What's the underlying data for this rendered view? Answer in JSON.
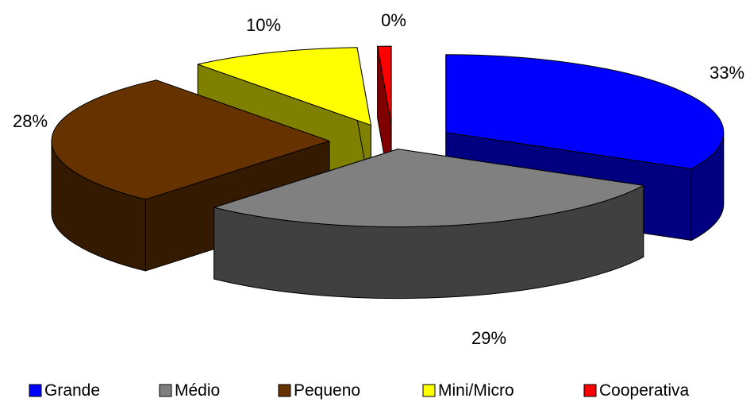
{
  "chart_data": {
    "type": "pie",
    "style": "3d-exploded",
    "categories": [
      "Grande",
      "Médio",
      "Pequeno",
      "Mini/Micro",
      "Cooperativa"
    ],
    "values": [
      33,
      29,
      28,
      10,
      0
    ],
    "value_labels": [
      "33%",
      "29%",
      "28%",
      "10%",
      "0%"
    ],
    "title": "",
    "legend": {
      "position": "bottom",
      "entries": [
        "Grande",
        "Médio",
        "Pequeno",
        "Mini/Micro",
        "Cooperativa"
      ]
    },
    "colors": {
      "top": [
        "#0000FF",
        "#808080",
        "#663300",
        "#FFFF00",
        "#FF0000"
      ],
      "side": [
        "#000080",
        "#404040",
        "#331A00",
        "#808000",
        "#800000"
      ]
    }
  }
}
